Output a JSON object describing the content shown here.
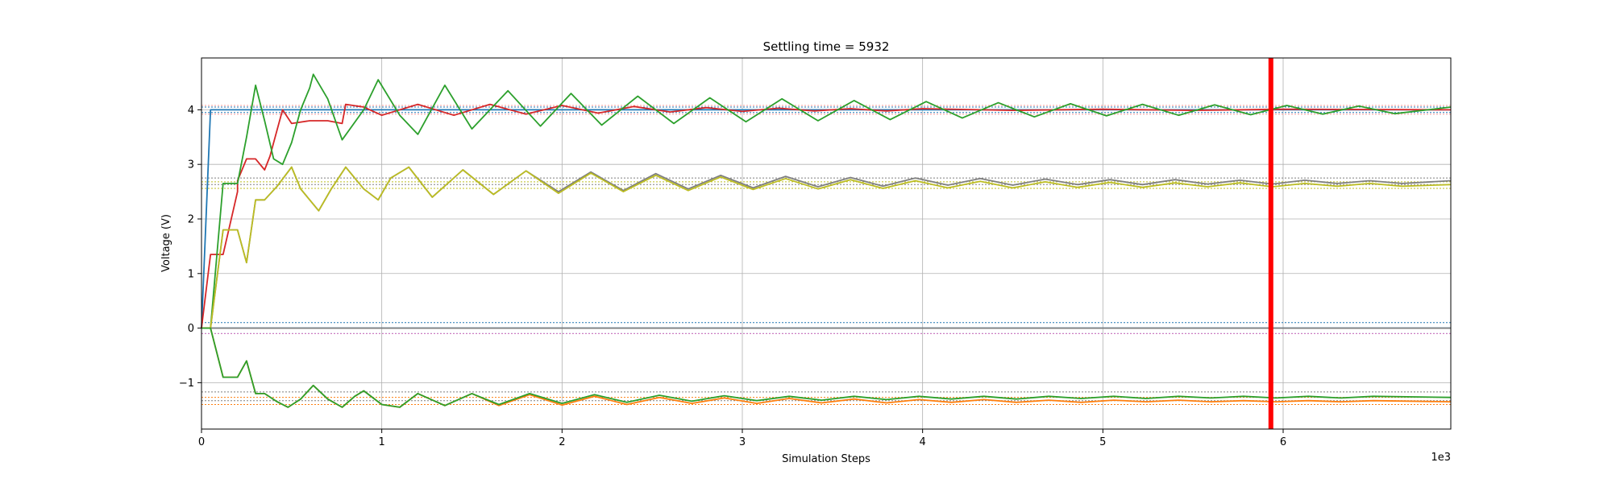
{
  "chart_data": {
    "type": "line",
    "title": "Settling time = 5932",
    "xlabel": "Simulation Steps",
    "ylabel": "Voltage (V)",
    "x_offset_label": "1e3",
    "xlim": [
      0,
      6.93
    ],
    "ylim": [
      -1.85,
      4.95
    ],
    "x_ticks": [
      0,
      1,
      2,
      3,
      4,
      5,
      6
    ],
    "y_ticks": [
      -1,
      0,
      1,
      2,
      3,
      4
    ],
    "grid": true,
    "settling_time_marker": {
      "x": 5.932,
      "color": "#ff0000"
    },
    "series": [
      {
        "color": "#1f77b4",
        "points": [
          [
            0,
            0
          ],
          [
            0.05,
            4.0
          ],
          [
            6.93,
            4.0
          ]
        ]
      },
      {
        "color": "#1f77b4",
        "points": [
          [
            0,
            0
          ],
          [
            6.93,
            0
          ]
        ]
      },
      {
        "color": "#d62728",
        "points": [
          [
            0,
            0
          ],
          [
            0.05,
            1.35
          ],
          [
            0.12,
            1.35
          ],
          [
            0.2,
            2.5
          ],
          [
            0.2,
            2.7
          ],
          [
            0.25,
            3.1
          ],
          [
            0.3,
            3.1
          ],
          [
            0.35,
            2.9
          ],
          [
            0.38,
            3.15
          ],
          [
            0.4,
            3.4
          ],
          [
            0.45,
            4.0
          ],
          [
            0.5,
            3.75
          ],
          [
            0.6,
            3.8
          ],
          [
            0.7,
            3.8
          ],
          [
            0.78,
            3.75
          ],
          [
            0.8,
            4.1
          ],
          [
            0.9,
            4.05
          ],
          [
            1.0,
            3.9
          ],
          [
            1.2,
            4.1
          ],
          [
            1.4,
            3.9
          ],
          [
            1.6,
            4.1
          ],
          [
            1.8,
            3.92
          ],
          [
            2.0,
            4.08
          ],
          [
            2.2,
            3.94
          ],
          [
            2.4,
            4.06
          ],
          [
            2.6,
            3.96
          ],
          [
            2.8,
            4.04
          ],
          [
            3.0,
            3.97
          ],
          [
            3.2,
            4.03
          ],
          [
            3.4,
            3.98
          ],
          [
            3.6,
            4.02
          ],
          [
            3.8,
            3.98
          ],
          [
            4.0,
            4.02
          ],
          [
            4.5,
            3.99
          ],
          [
            5.0,
            4.01
          ],
          [
            5.5,
            3.99
          ],
          [
            6.0,
            4.01
          ],
          [
            6.93,
            4.0
          ]
        ]
      },
      {
        "color": "#7f7f7f",
        "points": [
          [
            0,
            0
          ],
          [
            6.93,
            0
          ]
        ]
      },
      {
        "color": "#2ca02c",
        "points": [
          [
            0,
            0
          ],
          [
            0.05,
            0
          ],
          [
            0.12,
            2.65
          ],
          [
            0.2,
            2.65
          ],
          [
            0.25,
            3.5
          ],
          [
            0.3,
            4.45
          ],
          [
            0.35,
            3.8
          ],
          [
            0.4,
            3.1
          ],
          [
            0.45,
            3.0
          ],
          [
            0.5,
            3.4
          ],
          [
            0.55,
            4.0
          ],
          [
            0.6,
            4.4
          ],
          [
            0.62,
            4.65
          ],
          [
            0.7,
            4.2
          ],
          [
            0.78,
            3.45
          ],
          [
            0.9,
            4.0
          ],
          [
            0.98,
            4.55
          ],
          [
            1.1,
            3.9
          ],
          [
            1.2,
            3.55
          ],
          [
            1.35,
            4.45
          ],
          [
            1.5,
            3.65
          ],
          [
            1.7,
            4.35
          ],
          [
            1.88,
            3.7
          ],
          [
            2.05,
            4.3
          ],
          [
            2.22,
            3.72
          ],
          [
            2.42,
            4.25
          ],
          [
            2.62,
            3.75
          ],
          [
            2.82,
            4.22
          ],
          [
            3.02,
            3.78
          ],
          [
            3.22,
            4.2
          ],
          [
            3.42,
            3.8
          ],
          [
            3.62,
            4.17
          ],
          [
            3.82,
            3.82
          ],
          [
            4.02,
            4.15
          ],
          [
            4.22,
            3.85
          ],
          [
            4.42,
            4.13
          ],
          [
            4.62,
            3.87
          ],
          [
            4.82,
            4.11
          ],
          [
            5.02,
            3.89
          ],
          [
            5.22,
            4.1
          ],
          [
            5.42,
            3.9
          ],
          [
            5.62,
            4.09
          ],
          [
            5.82,
            3.91
          ],
          [
            6.02,
            4.08
          ],
          [
            6.22,
            3.92
          ],
          [
            6.42,
            4.07
          ],
          [
            6.62,
            3.93
          ],
          [
            6.93,
            4.05
          ]
        ]
      },
      {
        "color": "#7f7f7f",
        "points": [
          [
            0,
            0
          ],
          [
            0.05,
            0
          ],
          [
            0.12,
            1.8
          ],
          [
            0.2,
            1.8
          ],
          [
            0.25,
            1.2
          ],
          [
            0.3,
            2.35
          ],
          [
            0.35,
            2.35
          ],
          [
            0.42,
            2.6
          ],
          [
            0.5,
            2.95
          ],
          [
            0.55,
            2.55
          ],
          [
            0.65,
            2.15
          ],
          [
            0.72,
            2.55
          ],
          [
            0.8,
            2.95
          ],
          [
            0.9,
            2.55
          ],
          [
            0.98,
            2.35
          ],
          [
            1.05,
            2.75
          ],
          [
            1.15,
            2.95
          ],
          [
            1.28,
            2.4
          ],
          [
            1.45,
            2.9
          ],
          [
            1.62,
            2.45
          ],
          [
            1.8,
            2.88
          ],
          [
            1.98,
            2.5
          ],
          [
            2.16,
            2.86
          ],
          [
            2.34,
            2.52
          ],
          [
            2.52,
            2.83
          ],
          [
            2.7,
            2.55
          ],
          [
            2.88,
            2.8
          ],
          [
            3.06,
            2.57
          ],
          [
            3.24,
            2.78
          ],
          [
            3.42,
            2.59
          ],
          [
            3.6,
            2.76
          ],
          [
            3.78,
            2.6
          ],
          [
            3.96,
            2.75
          ],
          [
            4.14,
            2.62
          ],
          [
            4.32,
            2.74
          ],
          [
            4.5,
            2.62
          ],
          [
            4.68,
            2.73
          ],
          [
            4.86,
            2.63
          ],
          [
            5.04,
            2.72
          ],
          [
            5.22,
            2.63
          ],
          [
            5.4,
            2.72
          ],
          [
            5.58,
            2.64
          ],
          [
            5.76,
            2.71
          ],
          [
            5.94,
            2.64
          ],
          [
            6.12,
            2.71
          ],
          [
            6.3,
            2.65
          ],
          [
            6.48,
            2.7
          ],
          [
            6.66,
            2.65
          ],
          [
            6.93,
            2.7
          ]
        ]
      },
      {
        "color": "#bcbd22",
        "points": [
          [
            0,
            0
          ],
          [
            0.05,
            0
          ],
          [
            0.12,
            1.8
          ],
          [
            0.2,
            1.8
          ],
          [
            0.25,
            1.2
          ],
          [
            0.3,
            2.35
          ],
          [
            0.35,
            2.35
          ],
          [
            0.42,
            2.6
          ],
          [
            0.5,
            2.95
          ],
          [
            0.55,
            2.55
          ],
          [
            0.65,
            2.15
          ],
          [
            0.72,
            2.55
          ],
          [
            0.8,
            2.95
          ],
          [
            0.9,
            2.55
          ],
          [
            0.98,
            2.35
          ],
          [
            1.05,
            2.75
          ],
          [
            1.15,
            2.95
          ],
          [
            1.28,
            2.4
          ],
          [
            1.45,
            2.9
          ],
          [
            1.62,
            2.45
          ],
          [
            1.8,
            2.88
          ],
          [
            1.98,
            2.47
          ],
          [
            2.16,
            2.84
          ],
          [
            2.34,
            2.5
          ],
          [
            2.52,
            2.8
          ],
          [
            2.7,
            2.52
          ],
          [
            2.88,
            2.77
          ],
          [
            3.06,
            2.54
          ],
          [
            3.24,
            2.74
          ],
          [
            3.42,
            2.55
          ],
          [
            3.6,
            2.72
          ],
          [
            3.78,
            2.56
          ],
          [
            3.96,
            2.7
          ],
          [
            4.14,
            2.57
          ],
          [
            4.32,
            2.69
          ],
          [
            4.5,
            2.57
          ],
          [
            4.68,
            2.68
          ],
          [
            4.86,
            2.58
          ],
          [
            5.04,
            2.67
          ],
          [
            5.22,
            2.58
          ],
          [
            5.4,
            2.66
          ],
          [
            5.58,
            2.59
          ],
          [
            5.76,
            2.66
          ],
          [
            5.94,
            2.59
          ],
          [
            6.12,
            2.65
          ],
          [
            6.3,
            2.6
          ],
          [
            6.48,
            2.65
          ],
          [
            6.66,
            2.6
          ],
          [
            6.93,
            2.63
          ]
        ]
      },
      {
        "color": "#ff7f0e",
        "points": [
          [
            0,
            0
          ],
          [
            0.05,
            0
          ],
          [
            0.12,
            -0.9
          ],
          [
            0.2,
            -0.9
          ],
          [
            0.25,
            -0.6
          ],
          [
            0.3,
            -1.2
          ],
          [
            0.35,
            -1.2
          ],
          [
            0.42,
            -1.35
          ],
          [
            0.48,
            -1.45
          ],
          [
            0.55,
            -1.3
          ],
          [
            0.62,
            -1.05
          ],
          [
            0.7,
            -1.3
          ],
          [
            0.78,
            -1.45
          ],
          [
            0.85,
            -1.25
          ],
          [
            0.9,
            -1.15
          ],
          [
            1.0,
            -1.4
          ],
          [
            1.1,
            -1.45
          ],
          [
            1.2,
            -1.2
          ],
          [
            1.35,
            -1.42
          ],
          [
            1.5,
            -1.2
          ],
          [
            1.65,
            -1.42
          ],
          [
            1.82,
            -1.22
          ],
          [
            2.0,
            -1.41
          ],
          [
            2.18,
            -1.25
          ],
          [
            2.36,
            -1.4
          ],
          [
            2.54,
            -1.27
          ],
          [
            2.72,
            -1.38
          ],
          [
            2.9,
            -1.28
          ],
          [
            3.08,
            -1.38
          ],
          [
            3.26,
            -1.29
          ],
          [
            3.44,
            -1.37
          ],
          [
            3.62,
            -1.3
          ],
          [
            3.8,
            -1.37
          ],
          [
            3.98,
            -1.31
          ],
          [
            4.16,
            -1.36
          ],
          [
            4.34,
            -1.31
          ],
          [
            4.52,
            -1.36
          ],
          [
            4.7,
            -1.32
          ],
          [
            4.88,
            -1.36
          ],
          [
            5.06,
            -1.32
          ],
          [
            5.24,
            -1.35
          ],
          [
            5.42,
            -1.32
          ],
          [
            5.6,
            -1.35
          ],
          [
            5.78,
            -1.33
          ],
          [
            5.96,
            -1.35
          ],
          [
            6.14,
            -1.33
          ],
          [
            6.32,
            -1.35
          ],
          [
            6.5,
            -1.33
          ],
          [
            6.93,
            -1.35
          ]
        ]
      },
      {
        "color": "#2ca02c",
        "points": [
          [
            0,
            0
          ],
          [
            0.05,
            0
          ],
          [
            0.12,
            -0.9
          ],
          [
            0.2,
            -0.9
          ],
          [
            0.25,
            -0.6
          ],
          [
            0.3,
            -1.2
          ],
          [
            0.35,
            -1.2
          ],
          [
            0.42,
            -1.35
          ],
          [
            0.48,
            -1.45
          ],
          [
            0.55,
            -1.3
          ],
          [
            0.62,
            -1.05
          ],
          [
            0.7,
            -1.3
          ],
          [
            0.78,
            -1.45
          ],
          [
            0.85,
            -1.25
          ],
          [
            0.9,
            -1.15
          ],
          [
            1.0,
            -1.4
          ],
          [
            1.1,
            -1.45
          ],
          [
            1.2,
            -1.2
          ],
          [
            1.35,
            -1.42
          ],
          [
            1.5,
            -1.2
          ],
          [
            1.65,
            -1.4
          ],
          [
            1.82,
            -1.2
          ],
          [
            2.0,
            -1.38
          ],
          [
            2.18,
            -1.22
          ],
          [
            2.36,
            -1.36
          ],
          [
            2.54,
            -1.23
          ],
          [
            2.72,
            -1.34
          ],
          [
            2.9,
            -1.24
          ],
          [
            3.08,
            -1.33
          ],
          [
            3.26,
            -1.25
          ],
          [
            3.44,
            -1.32
          ],
          [
            3.62,
            -1.25
          ],
          [
            3.8,
            -1.31
          ],
          [
            3.98,
            -1.25
          ],
          [
            4.16,
            -1.3
          ],
          [
            4.34,
            -1.25
          ],
          [
            4.52,
            -1.3
          ],
          [
            4.7,
            -1.25
          ],
          [
            4.88,
            -1.29
          ],
          [
            5.06,
            -1.25
          ],
          [
            5.24,
            -1.29
          ],
          [
            5.42,
            -1.25
          ],
          [
            5.6,
            -1.28
          ],
          [
            5.78,
            -1.25
          ],
          [
            5.96,
            -1.28
          ],
          [
            6.14,
            -1.25
          ],
          [
            6.32,
            -1.28
          ],
          [
            6.5,
            -1.25
          ],
          [
            6.93,
            -1.27
          ]
        ]
      }
    ],
    "tolerance_bands": [
      {
        "color": "#ff9896",
        "values": [
          4.08,
          3.92
        ]
      },
      {
        "color": "#1f77b4",
        "values": [
          4.05,
          3.95
        ]
      },
      {
        "color": "#7f7f7f",
        "values": [
          2.75,
          2.63
        ]
      },
      {
        "color": "#bcbd22",
        "values": [
          2.68,
          2.56
        ]
      },
      {
        "color": "#7f7f7f",
        "values": [
          -1.17,
          -1.33
        ]
      },
      {
        "color": "#ff7f0e",
        "values": [
          -1.27,
          -1.4
        ]
      },
      {
        "color": "#1f77b4",
        "values": [
          0.1,
          -0.1
        ]
      },
      {
        "color": "#e377c2",
        "values": [
          -0.1
        ]
      }
    ]
  }
}
